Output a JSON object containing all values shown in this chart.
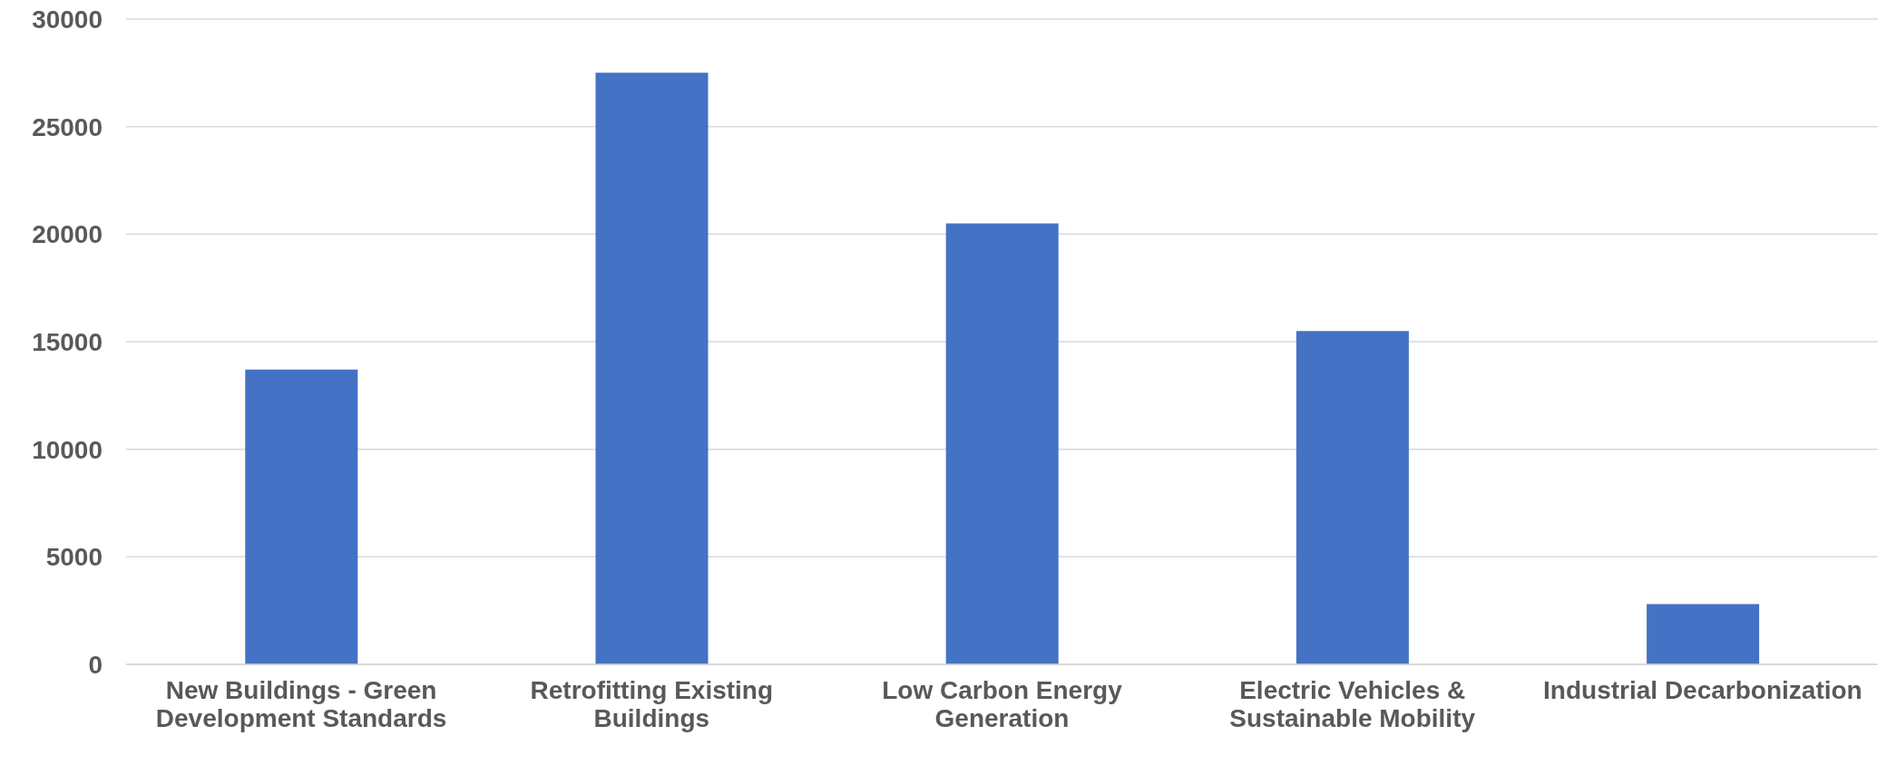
{
  "chart_data": {
    "type": "bar",
    "categories": [
      "New Buildings - Green Development Standards",
      "Retrofitting Existing Buildings",
      "Low Carbon Energy Generation",
      "Electric Vehicles & Sustainable Mobility",
      "Industrial Decarbonization"
    ],
    "values": [
      13700,
      27500,
      20500,
      15500,
      2800
    ],
    "color": "#4472c4",
    "ylim": [
      0,
      30000
    ],
    "yticks": [
      0,
      5000,
      10000,
      15000,
      20000,
      25000,
      30000
    ],
    "grid": "y",
    "legend": false
  }
}
